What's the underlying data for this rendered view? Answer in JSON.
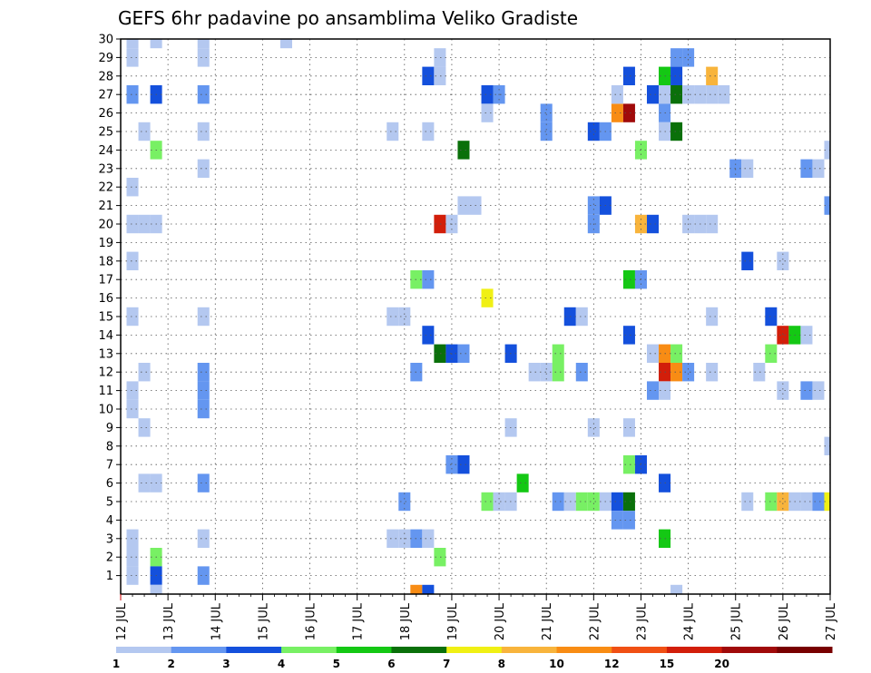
{
  "chart_data": {
    "type": "heatmap",
    "title": "GEFS 6hr padavine po ansamblima Veliko Gradiste",
    "x_tick_labels": [
      "12 JUL",
      "13 JUL",
      "14 JUL",
      "15 JUL",
      "16 JUL",
      "17 JUL",
      "18 JUL",
      "19 JUL",
      "20 JUL",
      "21 JUL",
      "22 JUL",
      "23 JUL",
      "24 JUL",
      "25 JUL",
      "26 JUL",
      "27 JUL"
    ],
    "y_tick_labels": [
      "1",
      "2",
      "3",
      "4",
      "5",
      "6",
      "7",
      "8",
      "9",
      "10",
      "11",
      "12",
      "13",
      "14",
      "15",
      "16",
      "17",
      "18",
      "19",
      "20",
      "21",
      "22",
      "23",
      "24",
      "25",
      "26",
      "27",
      "28",
      "29",
      "30"
    ],
    "x_range_steps": [
      0,
      60
    ],
    "y_range_members": [
      0,
      30
    ],
    "grid": true,
    "colorbar": {
      "position": "bottom",
      "tick_labels": [
        "1",
        "2",
        "3",
        "4",
        "5",
        "6",
        "7",
        "8",
        "10",
        "12",
        "15",
        "20"
      ],
      "colors": [
        "#b4c8f0",
        "#6496f0",
        "#1450dc",
        "#78f064",
        "#14c814",
        "#0a700a",
        "#f0f014",
        "#f8b43c",
        "#f88c14",
        "#f05014",
        "#d21e0a",
        "#a00a0a",
        "#780000"
      ]
    },
    "cell_columns": [
      "step",
      "member",
      "level"
    ],
    "cells": [
      [
        1,
        30,
        0
      ],
      [
        1,
        29,
        0
      ],
      [
        1,
        27,
        1
      ],
      [
        1,
        22,
        0
      ],
      [
        1,
        20,
        0
      ],
      [
        1,
        18,
        0
      ],
      [
        1,
        15,
        0
      ],
      [
        1,
        11,
        0
      ],
      [
        1,
        10,
        0
      ],
      [
        1,
        3,
        0
      ],
      [
        1,
        2,
        0
      ],
      [
        1,
        1,
        0
      ],
      [
        2,
        25,
        0
      ],
      [
        2,
        20,
        0
      ],
      [
        2,
        12,
        0
      ],
      [
        2,
        9,
        0
      ],
      [
        2,
        6,
        0
      ],
      [
        3,
        30,
        0
      ],
      [
        3,
        27,
        2
      ],
      [
        3,
        24,
        3
      ],
      [
        3,
        20,
        0
      ],
      [
        3,
        6,
        0
      ],
      [
        3,
        2,
        3
      ],
      [
        3,
        1,
        2
      ],
      [
        3,
        0,
        0
      ],
      [
        7,
        30,
        0
      ],
      [
        7,
        29,
        0
      ],
      [
        7,
        27,
        1
      ],
      [
        7,
        25,
        0
      ],
      [
        7,
        23,
        0
      ],
      [
        7,
        15,
        0
      ],
      [
        7,
        12,
        1
      ],
      [
        7,
        11,
        1
      ],
      [
        7,
        10,
        1
      ],
      [
        7,
        6,
        1
      ],
      [
        7,
        3,
        0
      ],
      [
        7,
        1,
        1
      ],
      [
        14,
        30,
        0
      ],
      [
        23,
        25,
        0
      ],
      [
        23,
        15,
        0
      ],
      [
        23,
        3,
        0
      ],
      [
        24,
        15,
        0
      ],
      [
        24,
        5,
        1
      ],
      [
        24,
        3,
        0
      ],
      [
        25,
        17,
        3
      ],
      [
        25,
        12,
        1
      ],
      [
        25,
        3,
        1
      ],
      [
        25,
        0,
        8
      ],
      [
        26,
        28,
        2
      ],
      [
        26,
        25,
        0
      ],
      [
        26,
        17,
        1
      ],
      [
        26,
        14,
        2
      ],
      [
        26,
        3,
        0
      ],
      [
        26,
        0,
        2
      ],
      [
        27,
        29,
        0
      ],
      [
        27,
        28,
        0
      ],
      [
        27,
        20,
        10
      ],
      [
        27,
        13,
        5
      ],
      [
        27,
        2,
        3
      ],
      [
        28,
        20,
        0
      ],
      [
        28,
        13,
        2
      ],
      [
        28,
        7,
        1
      ],
      [
        29,
        24,
        5
      ],
      [
        29,
        21,
        0
      ],
      [
        29,
        13,
        1
      ],
      [
        29,
        7,
        2
      ],
      [
        30,
        21,
        0
      ],
      [
        31,
        27,
        2
      ],
      [
        31,
        26,
        0
      ],
      [
        31,
        16,
        6
      ],
      [
        31,
        5,
        3
      ],
      [
        32,
        27,
        1
      ],
      [
        32,
        5,
        0
      ],
      [
        33,
        13,
        2
      ],
      [
        33,
        9,
        0
      ],
      [
        33,
        5,
        0
      ],
      [
        34,
        6,
        4
      ],
      [
        35,
        12,
        0
      ],
      [
        36,
        26,
        1
      ],
      [
        36,
        25,
        1
      ],
      [
        36,
        12,
        0
      ],
      [
        37,
        13,
        3
      ],
      [
        37,
        12,
        3
      ],
      [
        37,
        5,
        1
      ],
      [
        38,
        15,
        2
      ],
      [
        38,
        5,
        0
      ],
      [
        39,
        15,
        0
      ],
      [
        39,
        12,
        1
      ],
      [
        39,
        5,
        3
      ],
      [
        40,
        25,
        2
      ],
      [
        40,
        21,
        1
      ],
      [
        40,
        20,
        1
      ],
      [
        40,
        9,
        0
      ],
      [
        40,
        5,
        3
      ],
      [
        41,
        25,
        1
      ],
      [
        41,
        21,
        2
      ],
      [
        41,
        5,
        0
      ],
      [
        42,
        26,
        8
      ],
      [
        42,
        27,
        0
      ],
      [
        42,
        5,
        2
      ],
      [
        42,
        4,
        1
      ],
      [
        43,
        28,
        2
      ],
      [
        43,
        26,
        11
      ],
      [
        43,
        17,
        4
      ],
      [
        43,
        14,
        2
      ],
      [
        43,
        9,
        0
      ],
      [
        43,
        7,
        3
      ],
      [
        43,
        5,
        5
      ],
      [
        43,
        4,
        1
      ],
      [
        44,
        24,
        3
      ],
      [
        44,
        20,
        7
      ],
      [
        44,
        17,
        1
      ],
      [
        44,
        7,
        2
      ],
      [
        45,
        27,
        2
      ],
      [
        45,
        20,
        2
      ],
      [
        45,
        13,
        0
      ],
      [
        45,
        11,
        1
      ],
      [
        46,
        28,
        4
      ],
      [
        46,
        27,
        0
      ],
      [
        46,
        26,
        1
      ],
      [
        46,
        25,
        0
      ],
      [
        46,
        13,
        8
      ],
      [
        46,
        12,
        10
      ],
      [
        46,
        11,
        0
      ],
      [
        46,
        6,
        2
      ],
      [
        46,
        3,
        4
      ],
      [
        47,
        29,
        1
      ],
      [
        47,
        28,
        2
      ],
      [
        47,
        27,
        5
      ],
      [
        47,
        25,
        5
      ],
      [
        47,
        13,
        3
      ],
      [
        47,
        12,
        8
      ],
      [
        47,
        0,
        0
      ],
      [
        48,
        29,
        1
      ],
      [
        48,
        27,
        0
      ],
      [
        48,
        20,
        0
      ],
      [
        48,
        12,
        1
      ],
      [
        49,
        27,
        0
      ],
      [
        49,
        20,
        0
      ],
      [
        50,
        28,
        7
      ],
      [
        50,
        27,
        0
      ],
      [
        50,
        20,
        0
      ],
      [
        50,
        15,
        0
      ],
      [
        50,
        12,
        0
      ],
      [
        51,
        27,
        0
      ],
      [
        52,
        23,
        1
      ],
      [
        53,
        23,
        0
      ],
      [
        53,
        18,
        2
      ],
      [
        53,
        5,
        0
      ],
      [
        54,
        12,
        0
      ],
      [
        55,
        15,
        2
      ],
      [
        55,
        13,
        3
      ],
      [
        55,
        5,
        3
      ],
      [
        56,
        14,
        10
      ],
      [
        56,
        11,
        0
      ],
      [
        56,
        5,
        7
      ],
      [
        56,
        18,
        0
      ],
      [
        57,
        14,
        4
      ],
      [
        57,
        5,
        0
      ],
      [
        58,
        14,
        0
      ],
      [
        58,
        11,
        1
      ],
      [
        58,
        5,
        0
      ],
      [
        58,
        23,
        1
      ],
      [
        59,
        11,
        0
      ],
      [
        59,
        5,
        1
      ],
      [
        59,
        23,
        0
      ],
      [
        60,
        24,
        0
      ],
      [
        60,
        21,
        1
      ],
      [
        60,
        8,
        0
      ],
      [
        60,
        5,
        6
      ]
    ]
  }
}
